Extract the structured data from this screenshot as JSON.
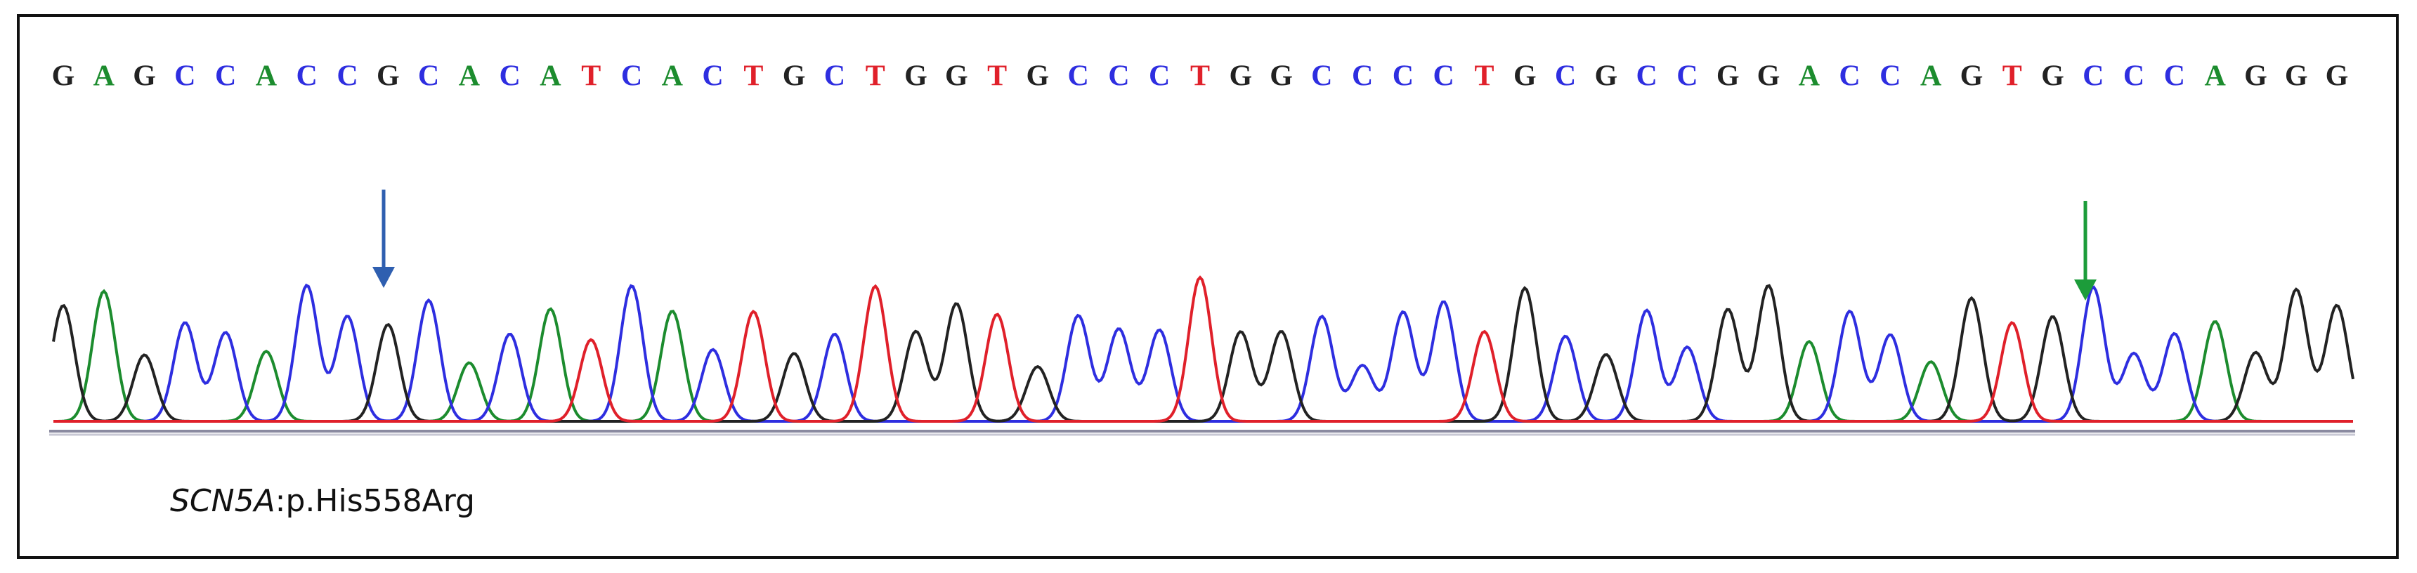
{
  "bases": [
    "G",
    "A",
    "G",
    "C",
    "C",
    "A",
    "C",
    "C",
    "G",
    "C",
    "A",
    "C",
    "A",
    "T",
    "C",
    "A",
    "C",
    "T",
    "G",
    "C",
    "T",
    "G",
    "G",
    "T",
    "G",
    "C",
    "C",
    "C",
    "T",
    "G",
    "G",
    "C",
    "C",
    "C",
    "C",
    "T",
    "G",
    "C",
    "G",
    "C",
    "C",
    "G",
    "G",
    "A",
    "C",
    "C",
    "A",
    "G",
    "T",
    "G",
    "C",
    "C",
    "C",
    "A",
    "G",
    "G",
    "G"
  ],
  "base_colors": {
    "A": "#1c8c2e",
    "C": "#2e2ee0",
    "G": "#222222",
    "T": "#e0202a"
  },
  "label": {
    "gene": "SCN5A",
    "variant": ":p.His558Arg"
  }
}
